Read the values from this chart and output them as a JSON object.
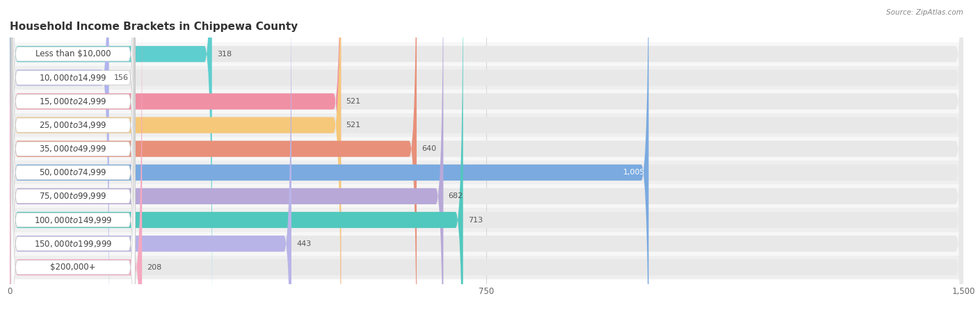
{
  "title": "Household Income Brackets in Chippewa County",
  "source": "Source: ZipAtlas.com",
  "categories": [
    "Less than $10,000",
    "$10,000 to $14,999",
    "$15,000 to $24,999",
    "$25,000 to $34,999",
    "$35,000 to $49,999",
    "$50,000 to $74,999",
    "$75,000 to $99,999",
    "$100,000 to $149,999",
    "$150,000 to $199,999",
    "$200,000+"
  ],
  "values": [
    318,
    156,
    521,
    521,
    640,
    1005,
    682,
    713,
    443,
    208
  ],
  "bar_colors": [
    "#5ecece",
    "#b0b4ec",
    "#f090a4",
    "#f5c87a",
    "#e8907a",
    "#7aaae0",
    "#b8a8d8",
    "#50c8be",
    "#b8b4e8",
    "#f5a8c0"
  ],
  "xlim": [
    0,
    1500
  ],
  "xticks": [
    0,
    750,
    1500
  ],
  "fig_bg": "#ffffff",
  "plot_bg": "#f2f2f2",
  "bar_bg_color": "#e8e8e8",
  "row_bg_even": "#f7f7f7",
  "row_bg_odd": "#efefef",
  "title_fontsize": 11,
  "label_fontsize": 8.5,
  "value_fontsize": 8.0,
  "bar_height": 0.68,
  "label_pill_color": "#ffffff",
  "label_text_color": "#444444",
  "value_text_color": "#555555",
  "max_value_label_color": "#ffffff",
  "grid_color": "#d8d8d8"
}
